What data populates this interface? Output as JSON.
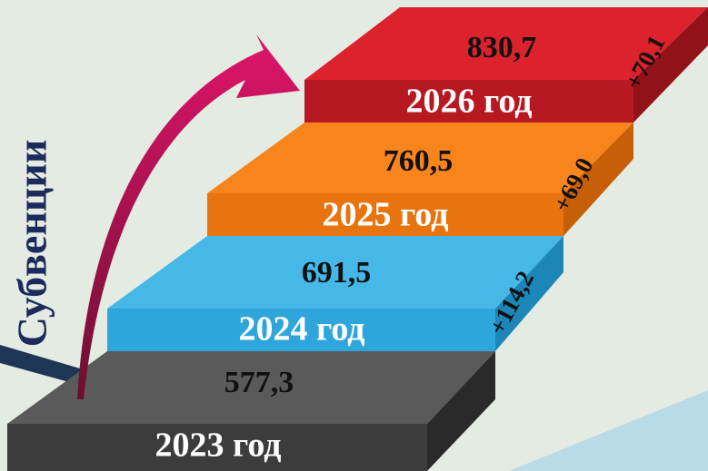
{
  "title": "Субвенции",
  "steps": [
    {
      "year": "2023 год",
      "value": "577,3"
    },
    {
      "year": "2024 год",
      "value": "691,5"
    },
    {
      "year": "2025 год",
      "value": "760,5"
    },
    {
      "year": "2026 год",
      "value": "830,7"
    }
  ],
  "deltas": [
    "+114,2",
    "+69,0",
    "+70,1"
  ]
}
